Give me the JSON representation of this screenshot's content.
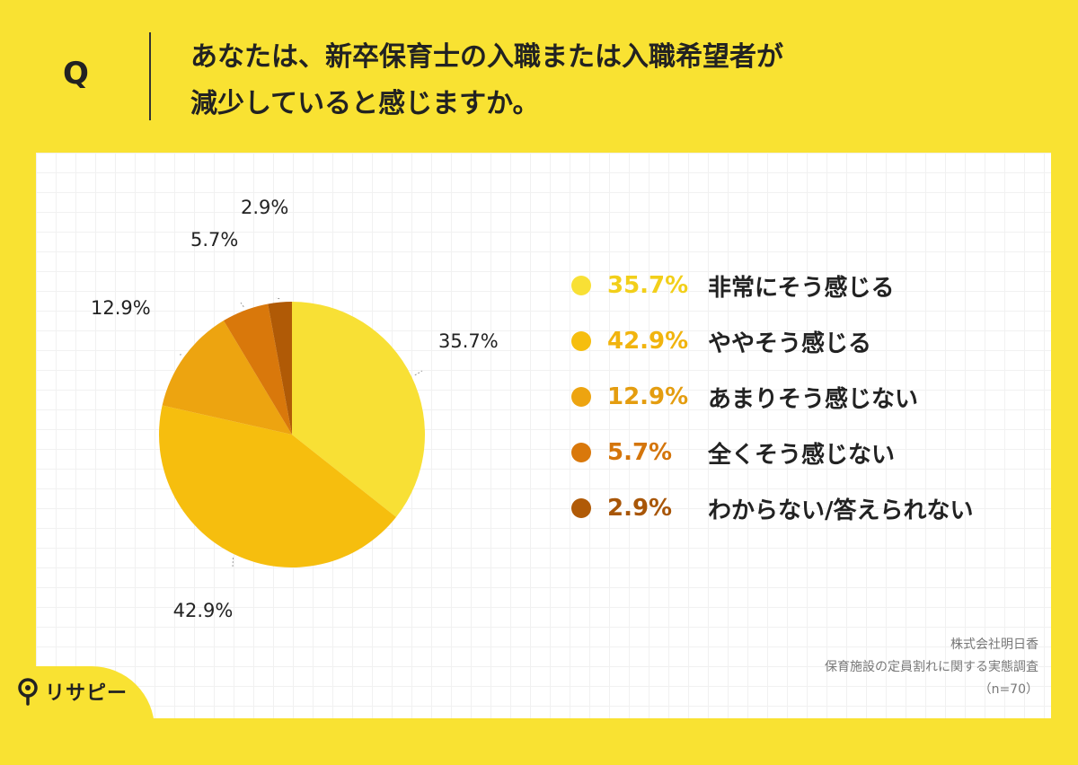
{
  "question": {
    "letter": "Q",
    "line1": "あなたは、新卒保育士の入職または入職希望者が",
    "line2": "減少していると感じますか。"
  },
  "chart_data": {
    "type": "pie",
    "categories": [
      "非常にそう感じる",
      "ややそう感じる",
      "あまりそう感じない",
      "全くそう感じない",
      "わからない/答えられない"
    ],
    "values": [
      35.7,
      42.9,
      12.9,
      5.7,
      2.9
    ],
    "value_labels": [
      "35.7%",
      "42.9%",
      "12.9%",
      "5.7%",
      "2.9%"
    ],
    "colors": [
      "#f8e035",
      "#f6be0e",
      "#eda410",
      "#d9780b",
      "#b05a06"
    ],
    "legend_text_colors": [
      "#f2cf1a",
      "#f1b40e",
      "#e49d10",
      "#d4750b",
      "#a85608"
    ],
    "start": "12 o'clock",
    "direction": "clockwise",
    "legend_placement": "right"
  },
  "source": {
    "company": "株式会社明日香",
    "survey": "保育施設の定員割れに関する実態調査",
    "n": "（n=70）"
  },
  "brand": {
    "name": "リサピー",
    "icon": "pin-icon"
  }
}
